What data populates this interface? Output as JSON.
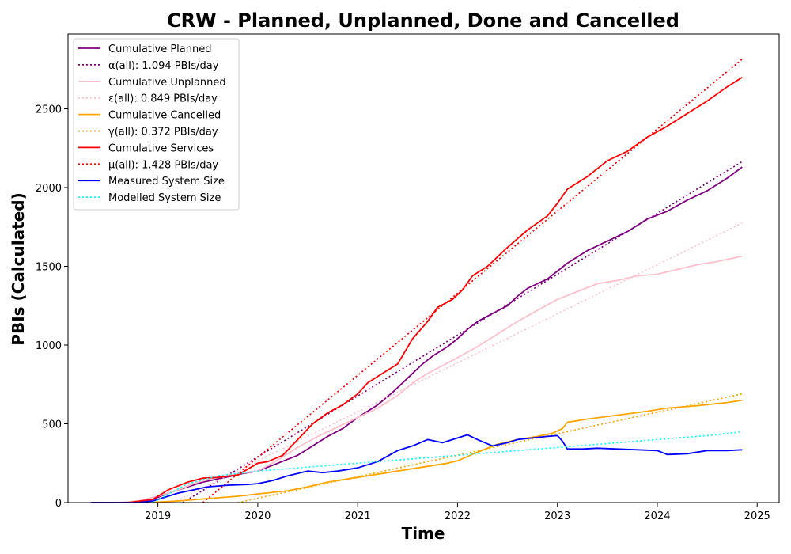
{
  "chart_data": {
    "type": "line",
    "title": "CRW - Planned, Unplanned, Done  and Cancelled",
    "xlabel": "Time",
    "ylabel": "PBIs (Calculated)",
    "xlim": [
      2018.1,
      2025.22
    ],
    "ylim": [
      0,
      2975
    ],
    "x_ticks": [
      2019,
      2020,
      2021,
      2022,
      2023,
      2024,
      2025
    ],
    "y_ticks": [
      0,
      500,
      1000,
      1500,
      2000,
      2500
    ],
    "grid": false,
    "legend_position": "top-left",
    "series": [
      {
        "name": "Cumulative Planned",
        "color": "#800080",
        "style": "solid",
        "x": [
          2018.33,
          2018.6,
          2018.8,
          2018.95,
          2019.1,
          2019.3,
          2019.45,
          2019.6,
          2019.75,
          2019.85,
          2020.0,
          2020.2,
          2020.4,
          2020.55,
          2020.7,
          2020.85,
          2021.0,
          2021.2,
          2021.35,
          2021.45,
          2021.55,
          2021.65,
          2021.75,
          2021.9,
          2022.0,
          2022.1,
          2022.2,
          2022.35,
          2022.5,
          2022.6,
          2022.7,
          2022.8,
          2022.9,
          2023.0,
          2023.1,
          2023.3,
          2023.5,
          2023.7,
          2023.9,
          2024.1,
          2024.3,
          2024.5,
          2024.7,
          2024.85
        ],
        "y": [
          0,
          0,
          5,
          20,
          60,
          100,
          130,
          150,
          170,
          185,
          200,
          250,
          300,
          360,
          420,
          470,
          540,
          620,
          700,
          760,
          820,
          880,
          930,
          990,
          1040,
          1100,
          1150,
          1200,
          1250,
          1310,
          1360,
          1390,
          1420,
          1470,
          1520,
          1600,
          1660,
          1720,
          1800,
          1850,
          1920,
          1980,
          2060,
          2130
        ]
      },
      {
        "name": "α(all): 1.094 PBIs/day",
        "color": "#800080",
        "style": "dotted",
        "x": [
          2019.25,
          2024.85
        ],
        "y": [
          0,
          2165
        ]
      },
      {
        "name": "Cumulative Unplanned",
        "color": "#ffc0cb",
        "style": "solid",
        "x": [
          2018.33,
          2018.6,
          2018.8,
          2019.0,
          2019.2,
          2019.4,
          2019.6,
          2019.8,
          2020.0,
          2020.2,
          2020.4,
          2020.6,
          2020.8,
          2021.0,
          2021.2,
          2021.4,
          2021.55,
          2021.7,
          2021.85,
          2022.0,
          2022.2,
          2022.4,
          2022.6,
          2022.8,
          2023.0,
          2023.2,
          2023.4,
          2023.6,
          2023.8,
          2024.0,
          2024.2,
          2024.4,
          2024.6,
          2024.85
        ],
        "y": [
          0,
          0,
          10,
          40,
          80,
          130,
          160,
          185,
          200,
          270,
          350,
          420,
          480,
          540,
          600,
          680,
          760,
          820,
          870,
          920,
          990,
          1070,
          1150,
          1220,
          1290,
          1340,
          1390,
          1410,
          1440,
          1450,
          1480,
          1510,
          1530,
          1565
        ]
      },
      {
        "name": "ε(all): 0.849 PBIs/day",
        "color": "#ffc0cb",
        "style": "dotted",
        "x": [
          2019.15,
          2024.85
        ],
        "y": [
          0,
          1775
        ]
      },
      {
        "name": "Cumulative Cancelled",
        "color": "#ffa500",
        "style": "solid",
        "x": [
          2018.33,
          2018.9,
          2019.2,
          2019.5,
          2019.8,
          2020.0,
          2020.3,
          2020.5,
          2020.7,
          2021.0,
          2021.3,
          2021.6,
          2021.9,
          2022.0,
          2022.2,
          2022.4,
          2022.6,
          2022.8,
          2022.95,
          2023.05,
          2023.1,
          2023.3,
          2023.6,
          2023.9,
          2024.1,
          2024.4,
          2024.7,
          2024.85
        ],
        "y": [
          0,
          0,
          10,
          25,
          40,
          55,
          75,
          100,
          130,
          160,
          190,
          220,
          250,
          265,
          320,
          370,
          400,
          420,
          440,
          470,
          510,
          530,
          555,
          580,
          600,
          615,
          635,
          650
        ]
      },
      {
        "name": "γ(all): 0.372 PBIs/day",
        "color": "#ffa500",
        "style": "dotted",
        "x": [
          2019.8,
          2024.85
        ],
        "y": [
          0,
          690
        ]
      },
      {
        "name": "Cumulative Services",
        "color": "#ff0000",
        "style": "solid",
        "x": [
          2018.33,
          2018.7,
          2018.95,
          2019.1,
          2019.3,
          2019.45,
          2019.6,
          2019.8,
          2020.0,
          2020.1,
          2020.25,
          2020.4,
          2020.55,
          2020.7,
          2020.85,
          2021.0,
          2021.1,
          2021.25,
          2021.4,
          2021.55,
          2021.7,
          2021.8,
          2021.95,
          2022.05,
          2022.15,
          2022.3,
          2022.5,
          2022.7,
          2022.9,
          2023.0,
          2023.1,
          2023.3,
          2023.5,
          2023.7,
          2023.9,
          2024.1,
          2024.3,
          2024.5,
          2024.7,
          2024.85
        ],
        "y": [
          0,
          0,
          20,
          80,
          130,
          155,
          160,
          175,
          250,
          260,
          300,
          400,
          500,
          570,
          620,
          690,
          760,
          820,
          880,
          1040,
          1150,
          1240,
          1290,
          1350,
          1440,
          1500,
          1620,
          1730,
          1820,
          1900,
          1990,
          2070,
          2170,
          2230,
          2320,
          2390,
          2470,
          2550,
          2640,
          2700
        ]
      },
      {
        "name": "μ(all): 1.428 PBIs/day",
        "color": "#ff0000",
        "style": "dotted",
        "x": [
          2019.45,
          2024.85
        ],
        "y": [
          0,
          2815
        ]
      },
      {
        "name": "Measured System Size",
        "color": "#0000ff",
        "style": "solid",
        "x": [
          2018.33,
          2018.8,
          2018.95,
          2019.05,
          2019.2,
          2019.35,
          2019.5,
          2019.7,
          2019.9,
          2020.0,
          2020.15,
          2020.3,
          2020.5,
          2020.65,
          2020.8,
          2021.0,
          2021.2,
          2021.4,
          2021.55,
          2021.7,
          2021.85,
          2022.0,
          2022.1,
          2022.2,
          2022.35,
          2022.5,
          2022.6,
          2022.75,
          2022.9,
          2023.0,
          2023.05,
          2023.1,
          2023.25,
          2023.4,
          2023.6,
          2023.8,
          2024.0,
          2024.1,
          2024.3,
          2024.5,
          2024.7,
          2024.85
        ],
        "y": [
          0,
          0,
          10,
          30,
          60,
          80,
          100,
          110,
          115,
          120,
          140,
          170,
          200,
          190,
          200,
          220,
          260,
          330,
          360,
          400,
          380,
          410,
          430,
          400,
          360,
          380,
          400,
          410,
          420,
          425,
          390,
          340,
          340,
          345,
          340,
          335,
          330,
          305,
          310,
          330,
          330,
          335
        ]
      },
      {
        "name": "Modelled System Size",
        "color": "#00ffff",
        "style": "dotted",
        "x": [
          2018.95,
          2019.3,
          2019.6,
          2020.0,
          2020.5,
          2021.0,
          2021.5,
          2022.0,
          2022.5,
          2023.0,
          2023.5,
          2024.0,
          2024.5,
          2024.85
        ],
        "y": [
          0,
          120,
          170,
          200,
          225,
          250,
          275,
          300,
          325,
          350,
          375,
          400,
          425,
          450
        ]
      }
    ]
  }
}
